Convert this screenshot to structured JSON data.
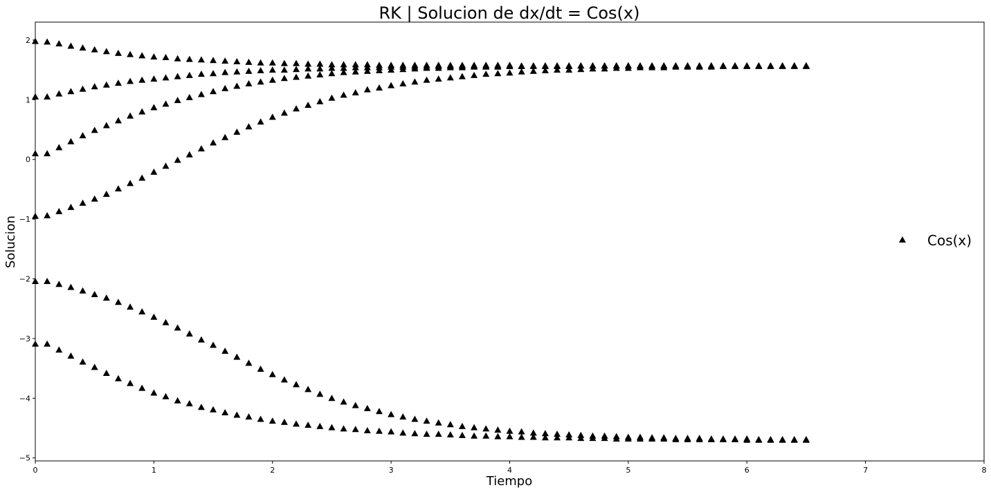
{
  "chart_data": {
    "type": "scatter",
    "title": "RK | Solucion de dx/dt = Cos(x)",
    "xlabel": "Tiempo",
    "ylabel": "Solucion",
    "xlim": [
      0,
      8
    ],
    "ylim": [
      -5.05,
      2.3
    ],
    "xticks": [
      0,
      1,
      2,
      3,
      4,
      5,
      6,
      7,
      8
    ],
    "yticks": [
      -5,
      -4,
      -3,
      -2,
      -1,
      0,
      1,
      2
    ],
    "grid": false,
    "legend_position": "right",
    "marker": "triangle",
    "marker_color": "#000000",
    "legend": [
      "Cos(x)"
    ],
    "x": [
      0.0,
      0.1,
      0.2,
      0.3,
      0.4,
      0.5,
      0.6,
      0.7,
      0.8,
      0.9,
      1.0,
      1.1,
      1.2,
      1.3,
      1.4,
      1.5,
      1.6,
      1.7,
      1.8,
      1.9,
      2.0,
      2.1,
      2.2,
      2.3,
      2.4,
      2.5,
      2.6,
      2.7,
      2.8,
      2.9,
      3.0,
      3.1,
      3.2,
      3.3,
      3.4,
      3.5,
      3.6,
      3.7,
      3.8,
      3.9,
      4.0,
      4.1,
      4.2,
      4.3,
      4.4,
      4.5,
      4.6,
      4.7,
      4.8,
      4.9,
      5.0,
      5.1,
      5.2,
      5.3,
      5.4,
      5.5,
      5.6,
      5.7,
      5.8,
      5.9,
      6.0,
      6.1,
      6.2,
      6.3,
      6.4,
      6.5
    ],
    "series": [
      {
        "values": [
          1.98,
          1.97,
          1.94,
          1.9,
          1.87,
          1.84,
          1.81,
          1.78,
          1.76,
          1.74,
          1.72,
          1.71,
          1.69,
          1.68,
          1.67,
          1.66,
          1.65,
          1.64,
          1.63,
          1.62,
          1.62,
          1.61,
          1.61,
          1.6,
          1.6,
          1.59,
          1.59,
          1.59,
          1.59,
          1.58,
          1.58,
          1.58,
          1.58,
          1.58,
          1.58,
          1.58,
          1.58,
          1.58,
          1.58,
          1.58,
          1.58,
          1.57,
          1.57,
          1.57,
          1.57,
          1.57,
          1.57,
          1.57,
          1.57,
          1.57,
          1.57,
          1.57,
          1.57,
          1.57,
          1.57,
          1.57,
          1.57,
          1.57,
          1.57,
          1.57,
          1.57,
          1.57,
          1.57,
          1.57,
          1.57,
          1.57
        ]
      },
      {
        "values": [
          1.05,
          1.05,
          1.1,
          1.14,
          1.18,
          1.22,
          1.25,
          1.28,
          1.31,
          1.33,
          1.35,
          1.37,
          1.39,
          1.41,
          1.43,
          1.44,
          1.46,
          1.47,
          1.48,
          1.49,
          1.5,
          1.5,
          1.51,
          1.52,
          1.52,
          1.53,
          1.53,
          1.54,
          1.54,
          1.54,
          1.55,
          1.55,
          1.55,
          1.55,
          1.56,
          1.56,
          1.56,
          1.56,
          1.56,
          1.56,
          1.56,
          1.56,
          1.57,
          1.57,
          1.57,
          1.57,
          1.57,
          1.57,
          1.57,
          1.57,
          1.57,
          1.57,
          1.57,
          1.57,
          1.57,
          1.57,
          1.57,
          1.57,
          1.57,
          1.57,
          1.57,
          1.57,
          1.57,
          1.57,
          1.57,
          1.57
        ]
      },
      {
        "values": [
          0.1,
          0.1,
          0.2,
          0.3,
          0.4,
          0.49,
          0.57,
          0.65,
          0.73,
          0.8,
          0.87,
          0.93,
          0.99,
          1.04,
          1.09,
          1.14,
          1.19,
          1.23,
          1.27,
          1.3,
          1.33,
          1.36,
          1.38,
          1.4,
          1.42,
          1.44,
          1.46,
          1.47,
          1.48,
          1.49,
          1.5,
          1.51,
          1.52,
          1.53,
          1.53,
          1.54,
          1.54,
          1.55,
          1.55,
          1.55,
          1.56,
          1.56,
          1.56,
          1.56,
          1.56,
          1.56,
          1.57,
          1.57,
          1.57,
          1.57,
          1.57,
          1.57,
          1.57,
          1.57,
          1.57,
          1.57,
          1.57,
          1.57,
          1.57,
          1.57,
          1.57,
          1.57,
          1.57,
          1.57,
          1.57,
          1.57
        ]
      },
      {
        "values": [
          -0.95,
          -0.94,
          -0.87,
          -0.8,
          -0.73,
          -0.66,
          -0.58,
          -0.49,
          -0.4,
          -0.31,
          -0.21,
          -0.11,
          -0.01,
          0.08,
          0.18,
          0.28,
          0.37,
          0.46,
          0.55,
          0.63,
          0.71,
          0.78,
          0.85,
          0.91,
          0.97,
          1.03,
          1.08,
          1.12,
          1.17,
          1.2,
          1.24,
          1.27,
          1.3,
          1.33,
          1.35,
          1.37,
          1.39,
          1.41,
          1.43,
          1.44,
          1.45,
          1.47,
          1.48,
          1.49,
          1.5,
          1.5,
          1.51,
          1.52,
          1.52,
          1.53,
          1.53,
          1.54,
          1.54,
          1.54,
          1.55,
          1.55,
          1.55,
          1.55,
          1.56,
          1.56,
          1.56,
          1.56,
          1.56,
          1.56,
          1.56,
          1.56
        ]
      },
      {
        "values": [
          -2.04,
          -2.04,
          -2.09,
          -2.14,
          -2.2,
          -2.26,
          -2.32,
          -2.39,
          -2.47,
          -2.55,
          -2.64,
          -2.73,
          -2.82,
          -2.92,
          -3.02,
          -3.11,
          -3.21,
          -3.31,
          -3.41,
          -3.51,
          -3.6,
          -3.69,
          -3.77,
          -3.85,
          -3.93,
          -4.0,
          -4.06,
          -4.12,
          -4.17,
          -4.22,
          -4.27,
          -4.31,
          -4.35,
          -4.38,
          -4.41,
          -4.44,
          -4.47,
          -4.49,
          -4.51,
          -4.53,
          -4.55,
          -4.56,
          -4.58,
          -4.59,
          -4.6,
          -4.61,
          -4.62,
          -4.63,
          -4.63,
          -4.64,
          -4.65,
          -4.65,
          -4.66,
          -4.66,
          -4.67,
          -4.67,
          -4.67,
          -4.68,
          -4.68,
          -4.68,
          -4.68,
          -4.69,
          -4.69,
          -4.69,
          -4.69,
          -4.69
        ]
      },
      {
        "values": [
          -3.09,
          -3.09,
          -3.19,
          -3.29,
          -3.39,
          -3.48,
          -3.58,
          -3.67,
          -3.75,
          -3.83,
          -3.91,
          -3.97,
          -4.04,
          -4.09,
          -4.15,
          -4.19,
          -4.24,
          -4.28,
          -4.31,
          -4.35,
          -4.38,
          -4.4,
          -4.43,
          -4.45,
          -4.47,
          -4.49,
          -4.51,
          -4.52,
          -4.54,
          -4.55,
          -4.56,
          -4.58,
          -4.59,
          -4.6,
          -4.6,
          -4.61,
          -4.62,
          -4.63,
          -4.63,
          -4.64,
          -4.64,
          -4.65,
          -4.65,
          -4.66,
          -4.66,
          -4.66,
          -4.67,
          -4.67,
          -4.67,
          -4.68,
          -4.68,
          -4.68,
          -4.68,
          -4.68,
          -4.69,
          -4.69,
          -4.69,
          -4.69,
          -4.69,
          -4.69,
          -4.7,
          -4.7,
          -4.7,
          -4.7,
          -4.7,
          -4.7
        ]
      }
    ]
  }
}
